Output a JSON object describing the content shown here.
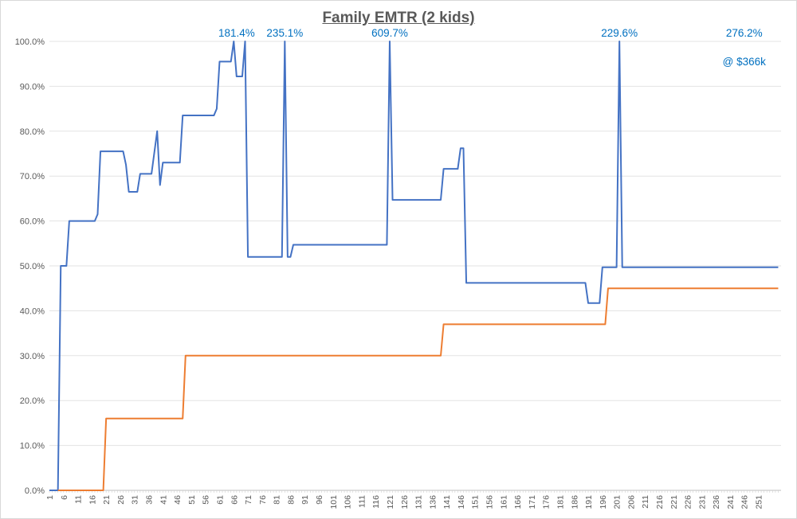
{
  "chart_data": {
    "type": "line",
    "title": "Family EMTR (2 kids)",
    "xlabel": "",
    "ylabel": "",
    "xlim": [
      1,
      255
    ],
    "ylim": [
      0,
      1
    ],
    "yticks": [
      "0.0%",
      "10.0%",
      "20.0%",
      "30.0%",
      "40.0%",
      "50.0%",
      "60.0%",
      "70.0%",
      "80.0%",
      "90.0%",
      "100.0%"
    ],
    "xticks": [
      "1",
      "6",
      "11",
      "16",
      "21",
      "26",
      "31",
      "36",
      "41",
      "46",
      "51",
      "56",
      "61",
      "66",
      "71",
      "76",
      "81",
      "86",
      "91",
      "96",
      "101",
      "106",
      "111",
      "116",
      "121",
      "126",
      "131",
      "136",
      "141",
      "146",
      "151",
      "156",
      "161",
      "166",
      "171",
      "176",
      "181",
      "186",
      "191",
      "196",
      "201",
      "206",
      "211",
      "216",
      "221",
      "226",
      "231",
      "236",
      "241",
      "246",
      "251"
    ],
    "grid": "horizontal",
    "legend": "none",
    "series": [
      {
        "color": "#4472c4",
        "points": [
          [
            1,
            0
          ],
          [
            4,
            0
          ],
          [
            5,
            0.5
          ],
          [
            7,
            0.5
          ],
          [
            8,
            0.6
          ],
          [
            17,
            0.6
          ],
          [
            18,
            0.615
          ],
          [
            19,
            0.755
          ],
          [
            27,
            0.755
          ],
          [
            28,
            0.725
          ],
          [
            29,
            0.665
          ],
          [
            32,
            0.665
          ],
          [
            33,
            0.705
          ],
          [
            37,
            0.705
          ],
          [
            39,
            0.8
          ],
          [
            40,
            0.68
          ],
          [
            41,
            0.73
          ],
          [
            47,
            0.73
          ],
          [
            48,
            0.835
          ],
          [
            59,
            0.835
          ],
          [
            60,
            0.85
          ],
          [
            61,
            0.955
          ],
          [
            65,
            0.955
          ],
          [
            66,
            1.0
          ],
          [
            67,
            0.922
          ],
          [
            69,
            0.922
          ],
          [
            70,
            1.0
          ],
          [
            71,
            0.52
          ],
          [
            83,
            0.52
          ],
          [
            84,
            1.0
          ],
          [
            85,
            0.52
          ],
          [
            86,
            0.52
          ],
          [
            87,
            0.547
          ],
          [
            120,
            0.547
          ],
          [
            121,
            1.0
          ],
          [
            122,
            0.647
          ],
          [
            139,
            0.647
          ],
          [
            140,
            0.716
          ],
          [
            145,
            0.716
          ],
          [
            146,
            0.762
          ],
          [
            147,
            0.762
          ],
          [
            148,
            0.462
          ],
          [
            190,
            0.462
          ],
          [
            191,
            0.417
          ],
          [
            195,
            0.417
          ],
          [
            196,
            0.497
          ],
          [
            201,
            0.497
          ],
          [
            202,
            1.0
          ],
          [
            203,
            0.497
          ],
          [
            258,
            0.497
          ]
        ]
      },
      {
        "color": "#ed7d31",
        "points": [
          [
            4,
            0
          ],
          [
            20,
            0
          ],
          [
            21,
            0.16
          ],
          [
            48,
            0.16
          ],
          [
            49,
            0.3
          ],
          [
            139,
            0.3
          ],
          [
            140,
            0.37
          ],
          [
            197,
            0.37
          ],
          [
            198,
            0.45
          ],
          [
            258,
            0.45
          ]
        ]
      }
    ],
    "annotations": [
      {
        "text": "181.4%",
        "x": 67,
        "y": 1.0
      },
      {
        "text": "235.1%",
        "x": 84,
        "y": 1.0
      },
      {
        "text": "609.7%",
        "x": 121,
        "y": 1.0
      },
      {
        "text": "229.6%",
        "x": 202,
        "y": 1.0
      },
      {
        "text": "276.2%",
        "x": 246,
        "y": 1.0
      },
      {
        "text": "@ $366k",
        "x": 246,
        "y": 0.975
      }
    ]
  }
}
